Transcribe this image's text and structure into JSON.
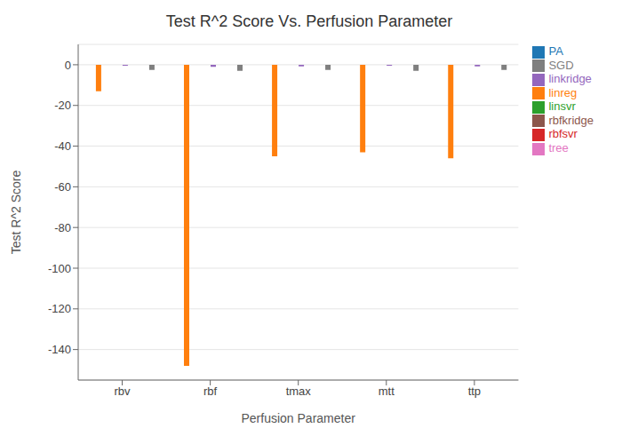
{
  "chart_data": {
    "type": "bar",
    "title": "Test R^2 Score Vs. Perfusion Parameter",
    "xlabel": "Perfusion Parameter",
    "ylabel": "Test R^2 Score",
    "categories": [
      "rbv",
      "rbf",
      "tmax",
      "mtt",
      "ttp"
    ],
    "series": [
      {
        "name": "PA",
        "color": "#1f77b4",
        "values": [
          0.0,
          0.0,
          0.0,
          0.0,
          0.0
        ]
      },
      {
        "name": "linreg",
        "color": "#ff7f0e",
        "values": [
          -13.0,
          -148.0,
          -45.0,
          -43.0,
          -46.0
        ]
      },
      {
        "name": "linsvr",
        "color": "#2ca02c",
        "values": [
          0.0,
          0.0,
          0.0,
          0.0,
          0.0
        ]
      },
      {
        "name": "rbfsvr",
        "color": "#d62728",
        "values": [
          0.0,
          0.0,
          0.0,
          0.0,
          0.0
        ]
      },
      {
        "name": "linkridge",
        "color": "#9467bd",
        "values": [
          -0.5,
          -1.0,
          -0.8,
          -0.5,
          -0.8
        ]
      },
      {
        "name": "rbfkridge",
        "color": "#8c564b",
        "values": [
          0.0,
          0.0,
          0.0,
          0.0,
          0.0
        ]
      },
      {
        "name": "tree",
        "color": "#e377c2",
        "values": [
          0.0,
          0.0,
          0.0,
          0.0,
          0.0
        ]
      },
      {
        "name": "SGD",
        "color": "#7f7f7f",
        "values": [
          -2.5,
          -3.0,
          -2.5,
          -3.0,
          -2.5
        ]
      }
    ],
    "ylim": [
      -155,
      10
    ],
    "yticks": [
      0,
      -20,
      -40,
      -60,
      -80,
      -100,
      -120,
      -140
    ],
    "grid": true,
    "legend": "right"
  }
}
